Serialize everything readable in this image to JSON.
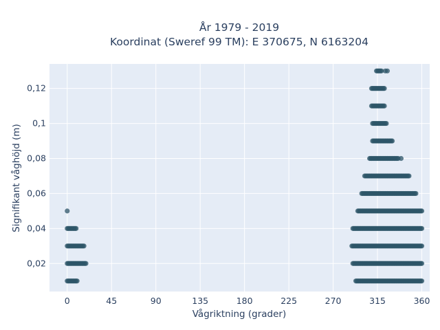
{
  "chart_data": {
    "type": "scatter",
    "title_line1": "År 1979 - 2019",
    "title_line2": "Koordinat (Sweref 99 TM): E 370675, N 6163204",
    "xlabel": "Vågriktning (grader)",
    "ylabel": "Signifikant våghöjd (m)",
    "xlim": [
      -18,
      368
    ],
    "ylim": [
      0.004,
      0.134
    ],
    "x_ticks": [
      0,
      45,
      90,
      135,
      180,
      225,
      270,
      315,
      360
    ],
    "x_tick_labels": [
      "0",
      "45",
      "90",
      "135",
      "180",
      "225",
      "270",
      "315",
      "360"
    ],
    "y_ticks": [
      0.02,
      0.04,
      0.06,
      0.08,
      0.1,
      0.12
    ],
    "y_tick_labels": [
      "0,02",
      "0,04",
      "0,06",
      "0,08",
      "0,1",
      "0,12"
    ],
    "grid": true,
    "marker_color": "#2e5568",
    "plot_background": "#e5ecf6",
    "series": [
      {
        "bands": [
          {
            "y": 0.01,
            "x_from": 0,
            "x_to": 10
          },
          {
            "y": 0.02,
            "x_from": 0,
            "x_to": 19
          },
          {
            "y": 0.03,
            "x_from": 0,
            "x_to": 17
          },
          {
            "y": 0.04,
            "x_from": 0,
            "x_to": 9
          },
          {
            "y": 0.01,
            "x_from": 293,
            "x_to": 360
          },
          {
            "y": 0.02,
            "x_from": 290,
            "x_to": 360
          },
          {
            "y": 0.03,
            "x_from": 289,
            "x_to": 360
          },
          {
            "y": 0.04,
            "x_from": 290,
            "x_to": 360
          },
          {
            "y": 0.05,
            "x_from": 295,
            "x_to": 360
          },
          {
            "y": 0.06,
            "x_from": 299,
            "x_to": 354
          },
          {
            "y": 0.07,
            "x_from": 302,
            "x_to": 347
          },
          {
            "y": 0.08,
            "x_from": 307,
            "x_to": 336
          },
          {
            "y": 0.09,
            "x_from": 310,
            "x_to": 330
          },
          {
            "y": 0.1,
            "x_from": 310,
            "x_to": 324
          },
          {
            "y": 0.11,
            "x_from": 309,
            "x_to": 322
          },
          {
            "y": 0.12,
            "x_from": 309,
            "x_to": 322
          },
          {
            "y": 0.13,
            "x_from": 314,
            "x_to": 319
          }
        ],
        "points": [
          {
            "x": 0,
            "y": 0.05
          },
          {
            "x": 339,
            "y": 0.08
          },
          {
            "x": 325,
            "y": 0.13
          },
          {
            "x": 323,
            "y": 0.13
          }
        ]
      }
    ]
  }
}
